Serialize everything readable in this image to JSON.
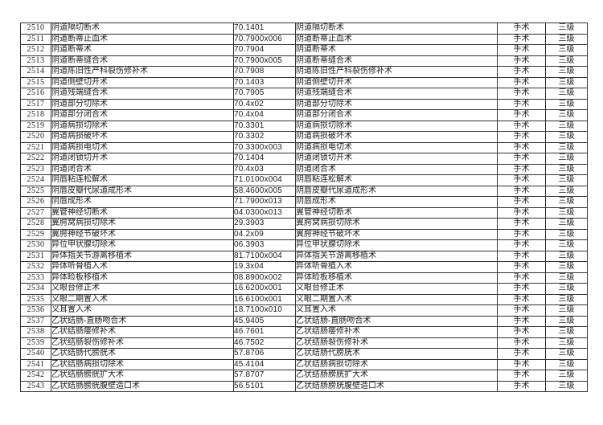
{
  "colors": {
    "background": "#ffffff",
    "border": "#333333",
    "text": "#1e1e1e"
  },
  "table": {
    "category_label": "手术",
    "level_label": "三级",
    "rows": [
      {
        "no": "2510",
        "name": "阴道隔切断术",
        "code": "70.1401",
        "name2": "阴道隔切断术",
        "category": "手术",
        "level": "三级"
      },
      {
        "no": "2511",
        "name": "阴道断蒂止血术",
        "code": "70.7900x006",
        "name2": "阴道断蒂止血术",
        "category": "手术",
        "level": "三级"
      },
      {
        "no": "2512",
        "name": "阴道断蒂术",
        "code": "70.7904",
        "name2": "阴道断蒂术",
        "category": "手术",
        "level": "三级"
      },
      {
        "no": "2513",
        "name": "阴道断蒂缝合术",
        "code": "70.7900x005",
        "name2": "阴道断蒂缝合术",
        "category": "手术",
        "level": "三级"
      },
      {
        "no": "2514",
        "name": "阴道陈旧性产科裂伤修补术",
        "code": "70.7908",
        "name2": "阴道陈旧性产科裂伤修补术",
        "category": "手术",
        "level": "三级"
      },
      {
        "no": "2515",
        "name": "阴道侧壁切开术",
        "code": "70.1403",
        "name2": "阴道侧壁切开术",
        "category": "手术",
        "level": "三级"
      },
      {
        "no": "2516",
        "name": "阴道残端缝合术",
        "code": "70.7905",
        "name2": "阴道残端缝合术",
        "category": "手术",
        "level": "三级"
      },
      {
        "no": "2517",
        "name": "阴道部分切除术",
        "code": "70.4x02",
        "name2": "阴道部分切除术",
        "category": "手术",
        "level": "三级"
      },
      {
        "no": "2518",
        "name": "阴道部分闭合术",
        "code": "70.4x04",
        "name2": "阴道部分闭合术",
        "category": "手术",
        "level": "三级"
      },
      {
        "no": "2519",
        "name": "阴道病损切除术",
        "code": "70.3301",
        "name2": "阴道病损切除术",
        "category": "手术",
        "level": "三级"
      },
      {
        "no": "2520",
        "name": "阴道病损破坏术",
        "code": "70.3302",
        "name2": "阴道病损破坏术",
        "category": "手术",
        "level": "三级"
      },
      {
        "no": "2521",
        "name": "阴道病损电切术",
        "code": "70.3300x003",
        "name2": "阴道病损电切术",
        "category": "手术",
        "level": "三级"
      },
      {
        "no": "2522",
        "name": "阴道闭锁切开术",
        "code": "70.1404",
        "name2": "阴道闭锁切开术",
        "category": "手术",
        "level": "三级"
      },
      {
        "no": "2523",
        "name": "阴道闭合术",
        "code": "70.4x03",
        "name2": "阴道闭合术",
        "category": "手术",
        "level": "三级"
      },
      {
        "no": "2524",
        "name": "阴唇粘连松解术",
        "code": "71.0100x004",
        "name2": "阴唇粘连松解术",
        "category": "手术",
        "level": "三级"
      },
      {
        "no": "2525",
        "name": "阴唇皮瓣代尿道成形术",
        "code": "58.4600x005",
        "name2": "阴唇皮瓣代尿道成形术",
        "category": "手术",
        "level": "三级"
      },
      {
        "no": "2526",
        "name": "阴唇成形术",
        "code": "71.7900x013",
        "name2": "阴唇成形术",
        "category": "手术",
        "level": "三级"
      },
      {
        "no": "2527",
        "name": "翼管神经切断术",
        "code": "04.0300x013",
        "name2": "翼管神经切断术",
        "category": "手术",
        "level": "三级"
      },
      {
        "no": "2528",
        "name": "翼腭窝病损切除术",
        "code": "29.3903",
        "name2": "翼腭窝病损切除术",
        "category": "手术",
        "level": "三级"
      },
      {
        "no": "2529",
        "name": "翼腭神经节破坏术",
        "code": "04.2x09",
        "name2": "翼腭神经节破坏术",
        "category": "手术",
        "level": "三级"
      },
      {
        "no": "2530",
        "name": "异位甲状腺切除术",
        "code": "06.3903",
        "name2": "异位甲状腺切除术",
        "category": "手术",
        "level": "三级"
      },
      {
        "no": "2531",
        "name": "异体指关节游离移植术",
        "code": "81.7100x004",
        "name2": "异体指关节游离移植术",
        "category": "手术",
        "level": "三级"
      },
      {
        "no": "2532",
        "name": "异体听骨植入术",
        "code": "19.3x04",
        "name2": "异体听骨植入术",
        "category": "手术",
        "level": "三级"
      },
      {
        "no": "2533",
        "name": "异体睑板移植术",
        "code": "08.8900x002",
        "name2": "异体睑板移植术",
        "category": "手术",
        "level": "三级"
      },
      {
        "no": "2534",
        "name": "义眼台修正术",
        "code": "16.6200x001",
        "name2": "义眼台修正术",
        "category": "手术",
        "level": "三级"
      },
      {
        "no": "2535",
        "name": "义眼二期置入术",
        "code": "16.6100x001",
        "name2": "义眼二期置入术",
        "category": "手术",
        "level": "三级"
      },
      {
        "no": "2536",
        "name": "义耳置入术",
        "code": "18.7100x010",
        "name2": "义耳置入术",
        "category": "手术",
        "level": "三级"
      },
      {
        "no": "2537",
        "name": "乙状结肠-直肠吻合术",
        "code": "45.9405",
        "name2": "乙状结肠-直肠吻合术",
        "category": "手术",
        "level": "三级"
      },
      {
        "no": "2538",
        "name": "乙状结肠瘘修补术",
        "code": "46.7601",
        "name2": "乙状结肠瘘修补术",
        "category": "手术",
        "level": "三级"
      },
      {
        "no": "2539",
        "name": "乙状结肠裂伤修补术",
        "code": "46.7502",
        "name2": "乙状结肠裂伤修补术",
        "category": "手术",
        "level": "三级"
      },
      {
        "no": "2540",
        "name": "乙状结肠代膀胱术",
        "code": "57.8706",
        "name2": "乙状结肠代膀胱术",
        "category": "手术",
        "level": "三级"
      },
      {
        "no": "2541",
        "name": "乙状结肠病损切除术",
        "code": "45.4104",
        "name2": "乙状结肠病损切除术",
        "category": "手术",
        "level": "三级"
      },
      {
        "no": "2542",
        "name": "乙状结肠膀胱扩大术",
        "code": "57.8707",
        "name2": "乙状结肠膀胱扩大术",
        "category": "手术",
        "level": "三级"
      },
      {
        "no": "2543",
        "name": "乙状结肠膀胱腹壁造口术",
        "code": "56.5101",
        "name2": "乙状结肠膀胱腹壁造口术",
        "category": "手术",
        "level": "三级"
      }
    ]
  }
}
